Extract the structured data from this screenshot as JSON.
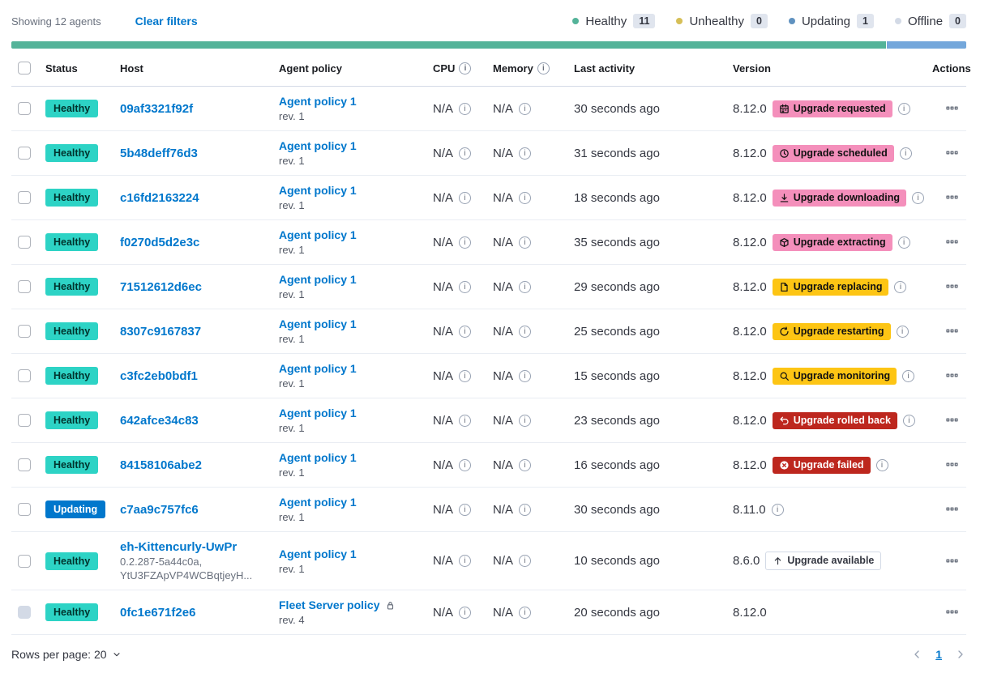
{
  "toolbar": {
    "showing_text": "Showing 12 agents",
    "clear_filters_label": "Clear filters",
    "legend": [
      {
        "label": "Healthy",
        "count": "11",
        "color": "#54B399"
      },
      {
        "label": "Unhealthy",
        "count": "0",
        "color": "#D6BF57"
      },
      {
        "label": "Updating",
        "count": "1",
        "color": "#6092C0"
      },
      {
        "label": "Offline",
        "count": "0",
        "color": "#D3DAE6"
      }
    ]
  },
  "health_bar": {
    "segments": [
      {
        "status": "healthy",
        "color": "#54B399",
        "fraction": 0.9167
      },
      {
        "status": "updating",
        "color": "#74A7DB",
        "fraction": 0.0833
      }
    ]
  },
  "table": {
    "columns": {
      "status": "Status",
      "host": "Host",
      "policy": "Agent policy",
      "cpu": "CPU",
      "memory": "Memory",
      "last_activity": "Last activity",
      "version": "Version",
      "actions": "Actions"
    }
  },
  "agents": [
    {
      "status": "Healthy",
      "host": "09af3321f92f",
      "host_sub": [],
      "policy": "Agent policy 1",
      "policy_rev": "rev. 1",
      "policy_locked": false,
      "cpu": "N/A",
      "memory": "N/A",
      "last_activity": "30 seconds ago",
      "version": "8.12.0",
      "upgrade_badge": {
        "label": "Upgrade requested",
        "icon": "calendar-icon",
        "style": "accent"
      },
      "version_info": true,
      "checkbox_disabled": false
    },
    {
      "status": "Healthy",
      "host": "5b48deff76d3",
      "host_sub": [],
      "policy": "Agent policy 1",
      "policy_rev": "rev. 1",
      "policy_locked": false,
      "cpu": "N/A",
      "memory": "N/A",
      "last_activity": "31 seconds ago",
      "version": "8.12.0",
      "upgrade_badge": {
        "label": "Upgrade scheduled",
        "icon": "clock-icon",
        "style": "accent"
      },
      "version_info": true,
      "checkbox_disabled": false
    },
    {
      "status": "Healthy",
      "host": "c16fd2163224",
      "host_sub": [],
      "policy": "Agent policy 1",
      "policy_rev": "rev. 1",
      "policy_locked": false,
      "cpu": "N/A",
      "memory": "N/A",
      "last_activity": "18 seconds ago",
      "version": "8.12.0",
      "upgrade_badge": {
        "label": "Upgrade downloading",
        "icon": "download-icon",
        "style": "accent"
      },
      "version_info": true,
      "checkbox_disabled": false
    },
    {
      "status": "Healthy",
      "host": "f0270d5d2e3c",
      "host_sub": [],
      "policy": "Agent policy 1",
      "policy_rev": "rev. 1",
      "policy_locked": false,
      "cpu": "N/A",
      "memory": "N/A",
      "last_activity": "35 seconds ago",
      "version": "8.12.0",
      "upgrade_badge": {
        "label": "Upgrade extracting",
        "icon": "package-icon",
        "style": "accent"
      },
      "version_info": true,
      "checkbox_disabled": false
    },
    {
      "status": "Healthy",
      "host": "71512612d6ec",
      "host_sub": [],
      "policy": "Agent policy 1",
      "policy_rev": "rev. 1",
      "policy_locked": false,
      "cpu": "N/A",
      "memory": "N/A",
      "last_activity": "29 seconds ago",
      "version": "8.12.0",
      "upgrade_badge": {
        "label": "Upgrade replacing",
        "icon": "document-icon",
        "style": "warning"
      },
      "version_info": true,
      "checkbox_disabled": false
    },
    {
      "status": "Healthy",
      "host": "8307c9167837",
      "host_sub": [],
      "policy": "Agent policy 1",
      "policy_rev": "rev. 1",
      "policy_locked": false,
      "cpu": "N/A",
      "memory": "N/A",
      "last_activity": "25 seconds ago",
      "version": "8.12.0",
      "upgrade_badge": {
        "label": "Upgrade restarting",
        "icon": "refresh-icon",
        "style": "warning"
      },
      "version_info": true,
      "checkbox_disabled": false
    },
    {
      "status": "Healthy",
      "host": "c3fc2eb0bdf1",
      "host_sub": [],
      "policy": "Agent policy 1",
      "policy_rev": "rev. 1",
      "policy_locked": false,
      "cpu": "N/A",
      "memory": "N/A",
      "last_activity": "15 seconds ago",
      "version": "8.12.0",
      "upgrade_badge": {
        "label": "Upgrade monitoring",
        "icon": "inspect-icon",
        "style": "warning"
      },
      "version_info": true,
      "checkbox_disabled": false
    },
    {
      "status": "Healthy",
      "host": "642afce34c83",
      "host_sub": [],
      "policy": "Agent policy 1",
      "policy_rev": "rev. 1",
      "policy_locked": false,
      "cpu": "N/A",
      "memory": "N/A",
      "last_activity": "23 seconds ago",
      "version": "8.12.0",
      "upgrade_badge": {
        "label": "Upgrade rolled back",
        "icon": "undo-icon",
        "style": "danger"
      },
      "version_info": true,
      "checkbox_disabled": false
    },
    {
      "status": "Healthy",
      "host": "84158106abe2",
      "host_sub": [],
      "policy": "Agent policy 1",
      "policy_rev": "rev. 1",
      "policy_locked": false,
      "cpu": "N/A",
      "memory": "N/A",
      "last_activity": "16 seconds ago",
      "version": "8.12.0",
      "upgrade_badge": {
        "label": "Upgrade failed",
        "icon": "error-icon",
        "style": "danger"
      },
      "version_info": true,
      "checkbox_disabled": false
    },
    {
      "status": "Updating",
      "host": "c7aa9c757fc6",
      "host_sub": [],
      "policy": "Agent policy 1",
      "policy_rev": "rev. 1",
      "policy_locked": false,
      "cpu": "N/A",
      "memory": "N/A",
      "last_activity": "30 seconds ago",
      "version": "8.11.0",
      "upgrade_badge": null,
      "version_info": true,
      "checkbox_disabled": false
    },
    {
      "status": "Healthy",
      "host": "eh-Kittencurly-UwPr",
      "host_sub": [
        "0.2.287-5a44c0a,",
        "YtU3FZApVP4WCBqtjeyH..."
      ],
      "policy": "Agent policy 1",
      "policy_rev": "rev. 1",
      "policy_locked": false,
      "cpu": "N/A",
      "memory": "N/A",
      "last_activity": "10 seconds ago",
      "version": "8.6.0",
      "upgrade_badge": {
        "label": "Upgrade available",
        "icon": "arrow-up-icon",
        "style": "hollow"
      },
      "version_info": false,
      "checkbox_disabled": false
    },
    {
      "status": "Healthy",
      "host": "0fc1e671f2e6",
      "host_sub": [],
      "policy": "Fleet Server policy",
      "policy_rev": "rev. 4",
      "policy_locked": true,
      "cpu": "N/A",
      "memory": "N/A",
      "last_activity": "20 seconds ago",
      "version": "8.12.0",
      "upgrade_badge": null,
      "version_info": false,
      "checkbox_disabled": true
    }
  ],
  "footer": {
    "rows_per_page_label": "Rows per page: 20",
    "current_page": "1"
  },
  "colors": {
    "link": "#0077CC",
    "healthy_badge": "#2DD3C5",
    "updating_badge": "#0077CC",
    "accent_badge": "#F48FBB",
    "warning_badge": "#FDC514",
    "danger_badge": "#BD271E"
  }
}
